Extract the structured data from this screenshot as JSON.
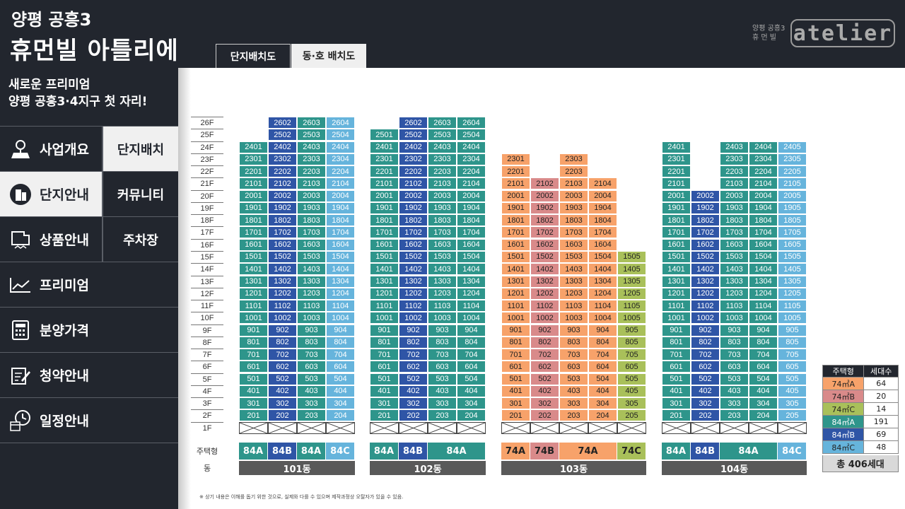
{
  "header": {
    "title_sub": "양평 공흥3",
    "title_main": "휴먼빌 아틀리에",
    "tabs": [
      "단지배치도",
      "동·호 배치도"
    ],
    "logo_small_1": "양평 공흥3",
    "logo_small_2": "휴 먼 빌",
    "logo_word": "atelier"
  },
  "sidebar": {
    "tagline_1": "새로운 프리미엄",
    "tagline_2": "양평 공흥3·4지구 첫 자리!",
    "menu": [
      {
        "label": "사업개요",
        "icon": "map-pin-icon"
      },
      {
        "label": "단지안내",
        "icon": "building-icon"
      },
      {
        "label": "상품안내",
        "icon": "floorplan-icon"
      },
      {
        "label": "프리미엄",
        "icon": "trend-chart-icon"
      },
      {
        "label": "분양가격",
        "icon": "calculator-icon"
      },
      {
        "label": "청약안내",
        "icon": "edit-document-icon"
      },
      {
        "label": "일정안내",
        "icon": "calendar-clock-icon"
      }
    ],
    "submenu": [
      "단지배치",
      "커뮤니티",
      "주차장"
    ]
  },
  "colors": {
    "74A": "#f7a26a",
    "74B": "#d98a8a",
    "74C": "#a9c05a",
    "84A": "#2e958b",
    "84B": "#2f55a6",
    "84C": "#66b4dc"
  },
  "floor_labels": [
    "26F",
    "25F",
    "24F",
    "23F",
    "22F",
    "21F",
    "20F",
    "19F",
    "18F",
    "17F",
    "16F",
    "15F",
    "14F",
    "13F",
    "12F",
    "11F",
    "10F",
    "9F",
    "8F",
    "7F",
    "6F",
    "5F",
    "4F",
    "3F",
    "2F",
    "1F"
  ],
  "row_labels": {
    "type": "주택형",
    "building": "동"
  },
  "buildings": [
    {
      "name": "101동",
      "lines": [
        {
          "line": 1,
          "type": "84A",
          "top": 24
        },
        {
          "line": 2,
          "type": "84B",
          "top": 26
        },
        {
          "line": 3,
          "type": "84A",
          "top": 26
        },
        {
          "line": 4,
          "type": "84C",
          "top": 26
        }
      ],
      "type_labels": [
        {
          "label": "84A",
          "type": "84A",
          "span": 1
        },
        {
          "label": "84B",
          "type": "84B",
          "span": 1
        },
        {
          "label": "84A",
          "type": "84A",
          "span": 1
        },
        {
          "label": "84C",
          "type": "84C",
          "span": 1
        }
      ]
    },
    {
      "name": "102동",
      "lines": [
        {
          "line": 1,
          "type": "84A",
          "top": 25
        },
        {
          "line": 2,
          "type": "84B",
          "top": 26
        },
        {
          "line": 3,
          "type": "84A",
          "top": 26
        },
        {
          "line": 4,
          "type": "84A",
          "top": 26
        }
      ],
      "type_labels": [
        {
          "label": "84A",
          "type": "84A",
          "span": 1
        },
        {
          "label": "84B",
          "type": "84B",
          "span": 1
        },
        {
          "label": "84A",
          "type": "84A",
          "span": 2
        }
      ]
    },
    {
      "name": "103동",
      "lines": [
        {
          "line": 1,
          "type": "74A",
          "top": 23
        },
        {
          "line": 2,
          "type": "74B",
          "top": 21
        },
        {
          "line": 3,
          "type": "74A",
          "top": 23
        },
        {
          "line": 4,
          "type": "74A",
          "top": 21
        },
        {
          "line": 5,
          "type": "74C",
          "top": 15
        }
      ],
      "type_labels": [
        {
          "label": "74A",
          "type": "74A",
          "span": 1
        },
        {
          "label": "74B",
          "type": "74B",
          "span": 1
        },
        {
          "label": "74A",
          "type": "74A",
          "span": 2
        },
        {
          "label": "74C",
          "type": "74C",
          "span": 1
        }
      ]
    },
    {
      "name": "104동",
      "lines": [
        {
          "line": 1,
          "type": "84A",
          "top": 24
        },
        {
          "line": 2,
          "type": "84B",
          "top": 20
        },
        {
          "line": 3,
          "type": "84A",
          "top": 24
        },
        {
          "line": 4,
          "type": "84A",
          "top": 24
        },
        {
          "line": 5,
          "type": "84C",
          "top": 24
        }
      ],
      "type_labels": [
        {
          "label": "84A",
          "type": "84A",
          "span": 1
        },
        {
          "label": "84B",
          "type": "84B",
          "span": 1
        },
        {
          "label": "84A",
          "type": "84A",
          "span": 2
        },
        {
          "label": "84C",
          "type": "84C",
          "span": 1
        }
      ]
    }
  ],
  "legend": {
    "header_type": "주택형",
    "header_count": "세대수",
    "rows": [
      {
        "type": "74㎡A",
        "count": "64",
        "key": "74A"
      },
      {
        "type": "74㎡B",
        "count": "20",
        "key": "74B"
      },
      {
        "type": "74㎡C",
        "count": "14",
        "key": "74C"
      },
      {
        "type": "84㎡A",
        "count": "191",
        "key": "84A"
      },
      {
        "type": "84㎡B",
        "count": "69",
        "key": "84B"
      },
      {
        "type": "84㎡C",
        "count": "48",
        "key": "84C"
      }
    ],
    "total": "총 406세대"
  },
  "footnote": "※ 상기 내용은 이해를 돕기 위한 것으로, 실제와 다를 수 있으며 제작과정상 오탈자가 있을 수 있음."
}
